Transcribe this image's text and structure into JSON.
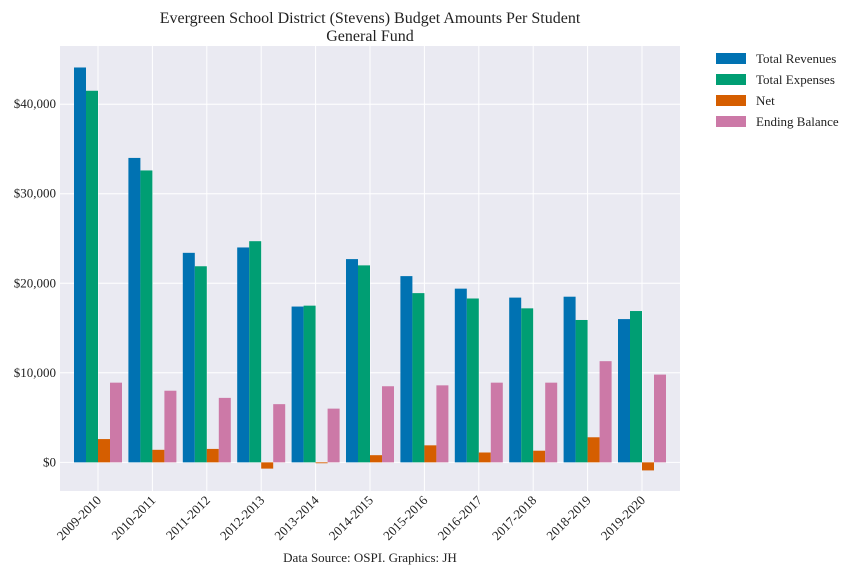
{
  "chart_data": {
    "type": "bar",
    "title": "Evergreen School District (Stevens) Budget Amounts Per Student",
    "subtitle": "General Fund",
    "xlabel": "",
    "ylabel": "",
    "categories": [
      "2009-2010",
      "2010-2011",
      "2011-2012",
      "2012-2013",
      "2013-2014",
      "2014-2015",
      "2015-2016",
      "2016-2017",
      "2017-2018",
      "2018-2019",
      "2019-2020"
    ],
    "series": [
      {
        "name": "Total Revenues",
        "color": "#0072b2",
        "values": [
          44100,
          34000,
          23400,
          24000,
          17400,
          22700,
          20800,
          19400,
          18400,
          18500,
          16000
        ]
      },
      {
        "name": "Total Expenses",
        "color": "#009e73",
        "values": [
          41500,
          32600,
          21900,
          24700,
          17500,
          22000,
          18900,
          18300,
          17200,
          15900,
          16900
        ]
      },
      {
        "name": "Net",
        "color": "#d55e00",
        "values": [
          2600,
          1400,
          1500,
          -700,
          -100,
          800,
          1900,
          1100,
          1300,
          2800,
          -900
        ]
      },
      {
        "name": "Ending Balance",
        "color": "#cc79a7",
        "values": [
          8900,
          8000,
          7200,
          6500,
          6000,
          8500,
          8600,
          8900,
          8900,
          11300,
          9800
        ]
      }
    ],
    "ylim": [
      -3200,
      46500
    ],
    "yticks": [
      0,
      10000,
      20000,
      30000,
      40000
    ],
    "ytick_labels": [
      "$0",
      "$10,000",
      "$20,000",
      "$30,000",
      "$40,000"
    ],
    "grid": true,
    "legend_position": "outside-right-top",
    "background": "#eaeaf2",
    "source_note": "Data Source: OSPI. Graphics: JH"
  }
}
